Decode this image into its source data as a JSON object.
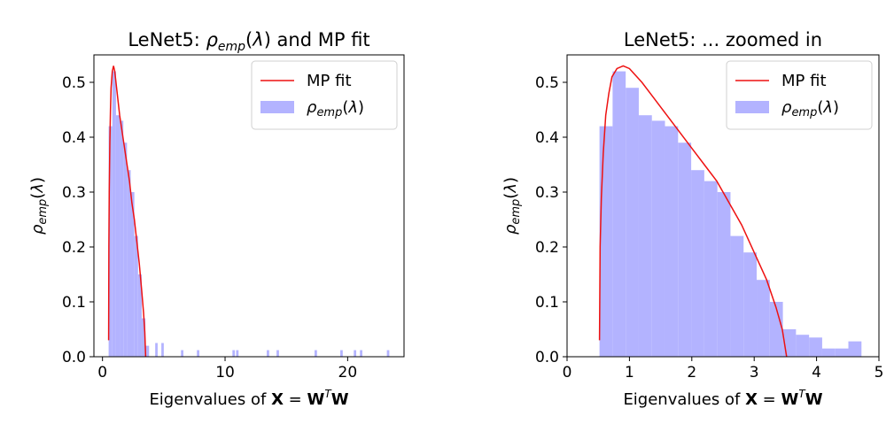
{
  "chart_data": [
    {
      "type": "bar",
      "title": "LeNet5:  ρemp(λ) and MP fit",
      "xlabel": "Eigenvalues of X = WᵀW",
      "ylabel": "ρemp(λ)",
      "xlim": [
        -0.7,
        24.6
      ],
      "ylim": [
        0,
        0.55
      ],
      "xticks": [
        0,
        10,
        20
      ],
      "yticks": [
        0.0,
        0.1,
        0.2,
        0.3,
        0.4,
        0.5
      ],
      "grid": false,
      "legend": "upper right",
      "series": [
        {
          "name": "ρemp(λ)",
          "kind": "histogram",
          "color": "#b3b3ff",
          "bins": [
            [
              0.5,
              0.8,
              0.42
            ],
            [
              0.8,
              1.1,
              0.52
            ],
            [
              1.1,
              1.4,
              0.44
            ],
            [
              1.4,
              1.7,
              0.43
            ],
            [
              1.7,
              2.0,
              0.39
            ],
            [
              2.0,
              2.3,
              0.34
            ],
            [
              2.3,
              2.6,
              0.3
            ],
            [
              2.6,
              2.9,
              0.22
            ],
            [
              2.9,
              3.2,
              0.15
            ],
            [
              3.2,
              3.5,
              0.07
            ],
            [
              3.5,
              3.8,
              0.02
            ],
            [
              4.3,
              4.5,
              0.025
            ],
            [
              4.8,
              5.0,
              0.025
            ],
            [
              6.4,
              6.6,
              0.012
            ],
            [
              7.7,
              7.9,
              0.012
            ],
            [
              10.6,
              10.8,
              0.012
            ],
            [
              10.9,
              11.1,
              0.012
            ],
            [
              13.4,
              13.6,
              0.012
            ],
            [
              14.2,
              14.4,
              0.012
            ],
            [
              17.3,
              17.5,
              0.012
            ],
            [
              19.4,
              19.6,
              0.012
            ],
            [
              20.5,
              20.7,
              0.012
            ],
            [
              21.0,
              21.2,
              0.012
            ],
            [
              23.2,
              23.4,
              0.012
            ]
          ]
        },
        {
          "name": "MP fit",
          "kind": "line",
          "color": "#ee1111",
          "x": [
            0.5,
            0.52,
            0.55,
            0.6,
            0.65,
            0.7,
            0.8,
            0.9,
            1.0,
            1.2,
            1.4,
            1.6,
            1.8,
            2.0,
            2.2,
            2.4,
            2.6,
            2.8,
            3.0,
            3.2,
            3.35,
            3.45,
            3.52
          ],
          "y": [
            0.03,
            0.2,
            0.3,
            0.39,
            0.45,
            0.49,
            0.52,
            0.53,
            0.52,
            0.48,
            0.44,
            0.41,
            0.38,
            0.35,
            0.32,
            0.28,
            0.25,
            0.21,
            0.17,
            0.12,
            0.08,
            0.045,
            0.0
          ]
        }
      ]
    },
    {
      "type": "bar",
      "title": "LeNet5: ... zoomed in",
      "xlabel": "Eigenvalues of X = WᵀW",
      "ylabel": "ρemp(λ)",
      "xlim": [
        0,
        5
      ],
      "ylim": [
        0,
        0.55
      ],
      "xticks": [
        0,
        1,
        2,
        3,
        4,
        5
      ],
      "yticks": [
        0.0,
        0.1,
        0.2,
        0.3,
        0.4,
        0.5
      ],
      "grid": false,
      "legend": "upper right",
      "series": [
        {
          "name": "ρemp(λ)",
          "kind": "histogram",
          "color": "#b3b3ff",
          "bins": [
            [
              0.52,
              0.73,
              0.42
            ],
            [
              0.73,
              0.94,
              0.52
            ],
            [
              0.94,
              1.15,
              0.49
            ],
            [
              1.15,
              1.36,
              0.44
            ],
            [
              1.36,
              1.57,
              0.43
            ],
            [
              1.57,
              1.78,
              0.42
            ],
            [
              1.78,
              1.99,
              0.39
            ],
            [
              1.99,
              2.2,
              0.34
            ],
            [
              2.2,
              2.41,
              0.32
            ],
            [
              2.41,
              2.62,
              0.3
            ],
            [
              2.62,
              2.83,
              0.22
            ],
            [
              2.83,
              3.04,
              0.19
            ],
            [
              3.04,
              3.25,
              0.14
            ],
            [
              3.25,
              3.46,
              0.1
            ],
            [
              3.46,
              3.67,
              0.05
            ],
            [
              3.67,
              3.88,
              0.04
            ],
            [
              3.88,
              4.09,
              0.035
            ],
            [
              4.09,
              4.3,
              0.015
            ],
            [
              4.3,
              4.51,
              0.015
            ],
            [
              4.51,
              4.72,
              0.028
            ]
          ]
        },
        {
          "name": "MP fit",
          "kind": "line",
          "color": "#ee1111",
          "x": [
            0.52,
            0.53,
            0.55,
            0.58,
            0.62,
            0.67,
            0.72,
            0.8,
            0.9,
            1.0,
            1.2,
            1.4,
            1.6,
            1.8,
            2.0,
            2.2,
            2.4,
            2.6,
            2.8,
            3.0,
            3.2,
            3.35,
            3.45,
            3.52
          ],
          "y": [
            0.03,
            0.2,
            0.29,
            0.37,
            0.44,
            0.48,
            0.51,
            0.525,
            0.53,
            0.525,
            0.5,
            0.47,
            0.44,
            0.41,
            0.38,
            0.35,
            0.32,
            0.28,
            0.24,
            0.19,
            0.14,
            0.09,
            0.05,
            0.0
          ]
        }
      ]
    }
  ]
}
